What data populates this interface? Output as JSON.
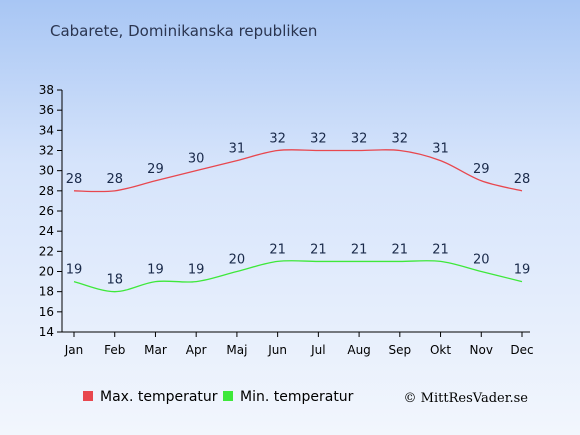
{
  "chart_data": {
    "type": "line",
    "title": "Cabarete, Dominikanska republiken",
    "xlabel": "",
    "ylabel": "",
    "categories": [
      "Jan",
      "Feb",
      "Mar",
      "Apr",
      "Maj",
      "Jun",
      "Jul",
      "Aug",
      "Sep",
      "Okt",
      "Nov",
      "Dec"
    ],
    "ylim": [
      14,
      38
    ],
    "yticks": [
      14,
      16,
      18,
      20,
      22,
      24,
      26,
      28,
      30,
      32,
      34,
      36,
      38
    ],
    "grid": false,
    "legend_position": "bottom",
    "series": [
      {
        "name": "Max. temperatur",
        "color": "#e8474e",
        "values": [
          28,
          28,
          29,
          30,
          31,
          32,
          32,
          32,
          32,
          31,
          29,
          28
        ]
      },
      {
        "name": "Min. temperatur",
        "color": "#3ee83a",
        "values": [
          19,
          18,
          19,
          19,
          20,
          21,
          21,
          21,
          21,
          21,
          20,
          19
        ]
      }
    ]
  },
  "credit": "© MittResVader.se"
}
